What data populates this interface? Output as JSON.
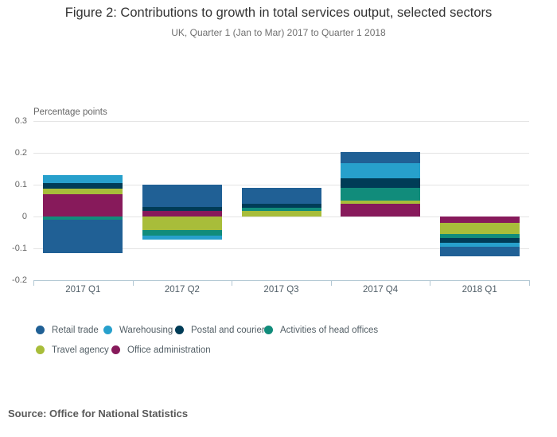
{
  "header": {
    "title": "Figure 2: Contributions to growth in total services output, selected sectors",
    "subtitle": "UK, Quarter 1 (Jan to Mar) 2017 to Quarter 1 2018"
  },
  "chart_data": {
    "type": "bar",
    "stacked": true,
    "unit_label": "Percentage points",
    "ylabel": "Percentage points",
    "xlabel": "",
    "categories": [
      "2017 Q1",
      "2017 Q2",
      "2017 Q3",
      "2017 Q4",
      "2018 Q1"
    ],
    "series": [
      {
        "name": "Retail trade",
        "color": "#206095",
        "values": [
          -0.105,
          0.068,
          0.05,
          0.034,
          -0.03
        ]
      },
      {
        "name": "Warehousing",
        "color": "#27a0cc",
        "values": [
          0.024,
          -0.011,
          0.0,
          0.047,
          -0.012
        ]
      },
      {
        "name": "Postal and courier",
        "color": "#003c57",
        "values": [
          0.019,
          0.013,
          0.011,
          0.031,
          -0.015
        ]
      },
      {
        "name": "Activities of head offices",
        "color": "#118c7b",
        "values": [
          -0.01,
          -0.019,
          0.01,
          0.039,
          -0.011
        ]
      },
      {
        "name": "Travel agency",
        "color": "#a8bd3a",
        "values": [
          0.017,
          -0.042,
          0.018,
          0.01,
          -0.037
        ]
      },
      {
        "name": "Office administration",
        "color": "#871a5b",
        "values": [
          0.07,
          0.018,
          0.0,
          0.041,
          -0.019
        ]
      }
    ],
    "ylim": [
      -0.2,
      0.3
    ],
    "yticks": [
      0.3,
      0.2,
      0.1,
      0,
      -0.1,
      -0.2
    ],
    "ytick_labels": [
      "0.3",
      "0.2",
      "0.1",
      "0",
      "-0.1",
      "-0.2"
    ],
    "grid": true,
    "legend_position": "bottom"
  },
  "source": {
    "label": "Source: Office for National Statistics"
  },
  "colors": {
    "grid": "#e4e4e4",
    "axis": "#b3c8d4",
    "title_text": "#333333",
    "subtitle_text": "#707070",
    "ytick_text": "#666666",
    "xtick_text": "#4f5d66",
    "legend_text": "#525e65",
    "source_text": "#595959"
  }
}
